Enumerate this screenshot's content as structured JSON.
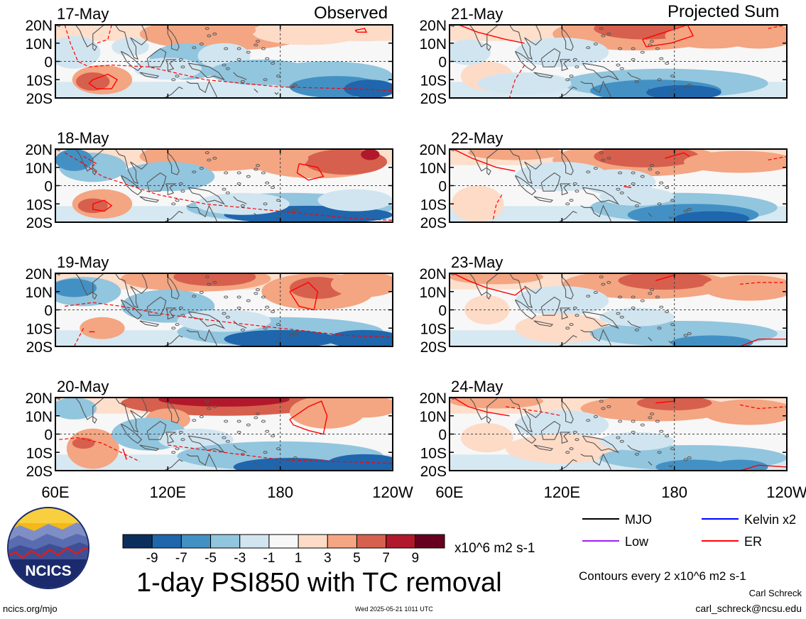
{
  "figure": {
    "title": "1-day PSI850 with TC removal",
    "left_column_label": "Observed",
    "right_column_label": "Projected Sum",
    "units": "x10^6 m2 s-1",
    "contour_note": "Contours every 2 x10^6 m2 s-1",
    "author": "Carl Schreck",
    "email": "carl_schreck@ncsu.edu",
    "website": "ncics.org/mjo",
    "timestamp": "Wed 2025-05-21 1011 UTC",
    "logo_text": "NCICS"
  },
  "panels": {
    "observed": [
      "17-May",
      "18-May",
      "19-May",
      "20-May"
    ],
    "projected": [
      "21-May",
      "22-May",
      "23-May",
      "24-May"
    ]
  },
  "chart_data": {
    "type": "heatmap",
    "variable": "PSI850",
    "x_ticks": [
      "60E",
      "120E",
      "180",
      "120W"
    ],
    "y_ticks": [
      "20N",
      "10N",
      "0",
      "10S",
      "20S"
    ],
    "xlim_deg_east": [
      60,
      240
    ],
    "ylim_deg_lat": [
      -20,
      20
    ],
    "colorbar": {
      "labels": [
        "-9",
        "-7",
        "-5",
        "-3",
        "-1",
        "1",
        "3",
        "5",
        "7",
        "9"
      ],
      "levels": [
        -9,
        -7,
        -5,
        -3,
        -1,
        1,
        3,
        5,
        7,
        9
      ],
      "colors": [
        "#0a2f5c",
        "#1f66ad",
        "#4391c4",
        "#92c5de",
        "#d1e5f0",
        "#f7f7f7",
        "#fddbc7",
        "#f4a582",
        "#d6604d",
        "#b2182b",
        "#67001f"
      ]
    },
    "legend": [
      {
        "label": "MJO",
        "color": "#000000"
      },
      {
        "label": "Kelvin x2",
        "color": "#0000ff"
      },
      {
        "label": "Low",
        "color": "#a020f0"
      },
      {
        "label": "ER",
        "color": "#ff0000"
      }
    ],
    "colors": {
      "land_outline": "#555555",
      "grid_dash": "#444444",
      "er_contour": "#ff0000",
      "logo_ring": "#1a2a6c",
      "logo_sun": "#f5b818"
    }
  }
}
